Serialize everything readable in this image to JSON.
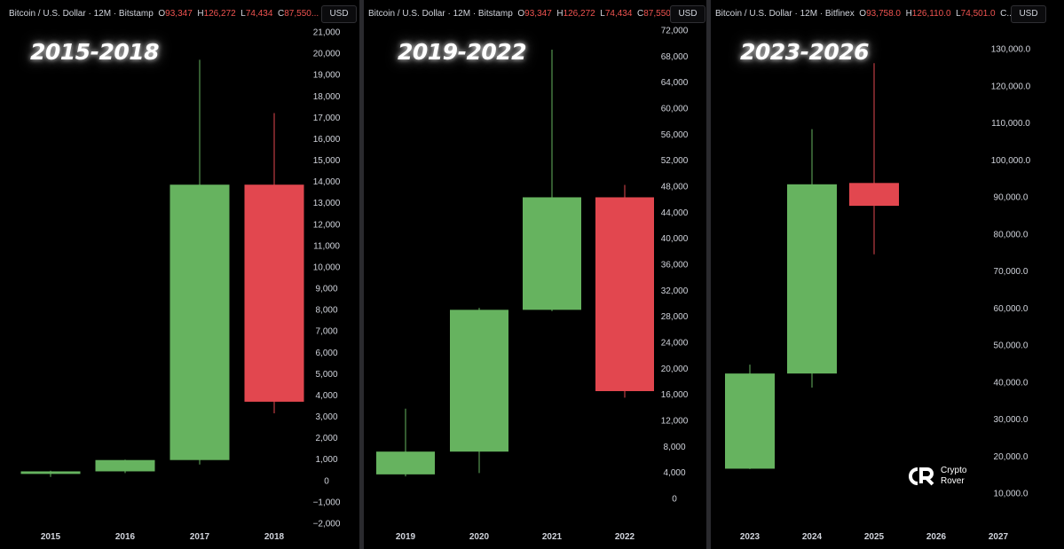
{
  "panels": [
    {
      "header": {
        "symbol": "Bitcoin / U.S. Dollar · 12M · Bitstamp",
        "o_label": "O",
        "o_val": "93,347",
        "h_label": "H",
        "h_val": "126,272",
        "l_label": "L",
        "l_val": "74,434",
        "c_label": "C",
        "c_val": "87,550..."
      },
      "currency": "USD",
      "era": "2015-2018"
    },
    {
      "header": {
        "symbol": "Bitcoin / U.S. Dollar · 12M · Bitstamp",
        "o_label": "O",
        "o_val": "93,347",
        "h_label": "H",
        "h_val": "126,272",
        "l_label": "L",
        "l_val": "74,434",
        "c_label": "C",
        "c_val": "87,550..."
      },
      "currency": "USD",
      "era": "2019-2022"
    },
    {
      "header": {
        "symbol": "Bitcoin / U.S. Dollar · 12M · Bitfinex",
        "o_label": "O",
        "o_val": "93,758.0",
        "h_label": "H",
        "h_val": "126,110.0",
        "l_label": "L",
        "l_val": "74,501.0",
        "c_label": "C..."
      },
      "currency": "USD",
      "era": "2023-2026"
    }
  ],
  "logo": {
    "line1": "Crypto",
    "line2": "Rover"
  },
  "colors": {
    "up": "#66b35f",
    "down": "#e2474f",
    "background": "#000000",
    "text": "#d1d4dc"
  },
  "chart_data": [
    {
      "type": "candlestick",
      "title": "2015-2018",
      "categories": [
        "2015",
        "2016",
        "2017",
        "2018"
      ],
      "open": [
        310,
        430,
        960,
        13850
      ],
      "high": [
        460,
        980,
        19700,
        17200
      ],
      "low": [
        170,
        350,
        750,
        3150
      ],
      "close": [
        430,
        960,
        13850,
        3690
      ],
      "ylim": [
        -2000,
        21000
      ],
      "yticks": [
        -2000,
        -1000,
        0,
        1000,
        2000,
        3000,
        4000,
        5000,
        6000,
        7000,
        8000,
        9000,
        10000,
        11000,
        12000,
        13000,
        14000,
        15000,
        16000,
        17000,
        18000,
        19000,
        20000,
        21000
      ],
      "ytick_labels": [
        "−2,000",
        "−1,000",
        "0",
        "1,000",
        "2,000",
        "3,000",
        "4,000",
        "5,000",
        "6,000",
        "7,000",
        "8,000",
        "9,000",
        "10,000",
        "11,000",
        "12,000",
        "13,000",
        "14,000",
        "15,000",
        "16,000",
        "17,000",
        "18,000",
        "19,000",
        "20,000",
        "21,000"
      ],
      "ylabel": "USD"
    },
    {
      "type": "candlestick",
      "title": "2019-2022",
      "categories": [
        "2019",
        "2020",
        "2021",
        "2022"
      ],
      "open": [
        3700,
        7200,
        29000,
        46300
      ],
      "high": [
        13800,
        29300,
        69000,
        48200
      ],
      "low": [
        3400,
        3900,
        28800,
        15500
      ],
      "close": [
        7200,
        29000,
        46300,
        16500
      ],
      "ylim": [
        -1000,
        74000
      ],
      "yticks": [
        0,
        4000,
        8000,
        12000,
        16000,
        20000,
        24000,
        28000,
        32000,
        36000,
        40000,
        44000,
        48000,
        52000,
        56000,
        60000,
        64000,
        68000,
        72000
      ],
      "ytick_labels": [
        "0",
        "4,000",
        "8,000",
        "12,000",
        "16,000",
        "20,000",
        "24,000",
        "28,000",
        "32,000",
        "36,000",
        "40,000",
        "44,000",
        "48,000",
        "52,000",
        "56,000",
        "60,000",
        "64,000",
        "68,000",
        "72,000"
      ],
      "ylabel": "USD"
    },
    {
      "type": "candlestick",
      "title": "2023-2026",
      "categories": [
        "2023",
        "2024",
        "2025",
        "2026",
        "2027"
      ],
      "open": [
        16600,
        42300,
        93758,
        null,
        null
      ],
      "high": [
        44700,
        108300,
        126110,
        null,
        null
      ],
      "low": [
        16500,
        38500,
        74501,
        null,
        null
      ],
      "close": [
        42300,
        93400,
        87600,
        null,
        null
      ],
      "ylim": [
        3000,
        136000
      ],
      "yticks": [
        10000,
        20000,
        30000,
        40000,
        50000,
        60000,
        70000,
        80000,
        90000,
        100000,
        110000,
        120000,
        130000
      ],
      "ytick_labels": [
        "10,000.0",
        "20,000.0",
        "30,000.0",
        "40,000.0",
        "50,000.0",
        "60,000.0",
        "70,000.0",
        "80,000.0",
        "90,000.0",
        "100,000.0",
        "110,000.0",
        "120,000.0",
        "130,000.0"
      ],
      "ylabel": "USD"
    }
  ]
}
